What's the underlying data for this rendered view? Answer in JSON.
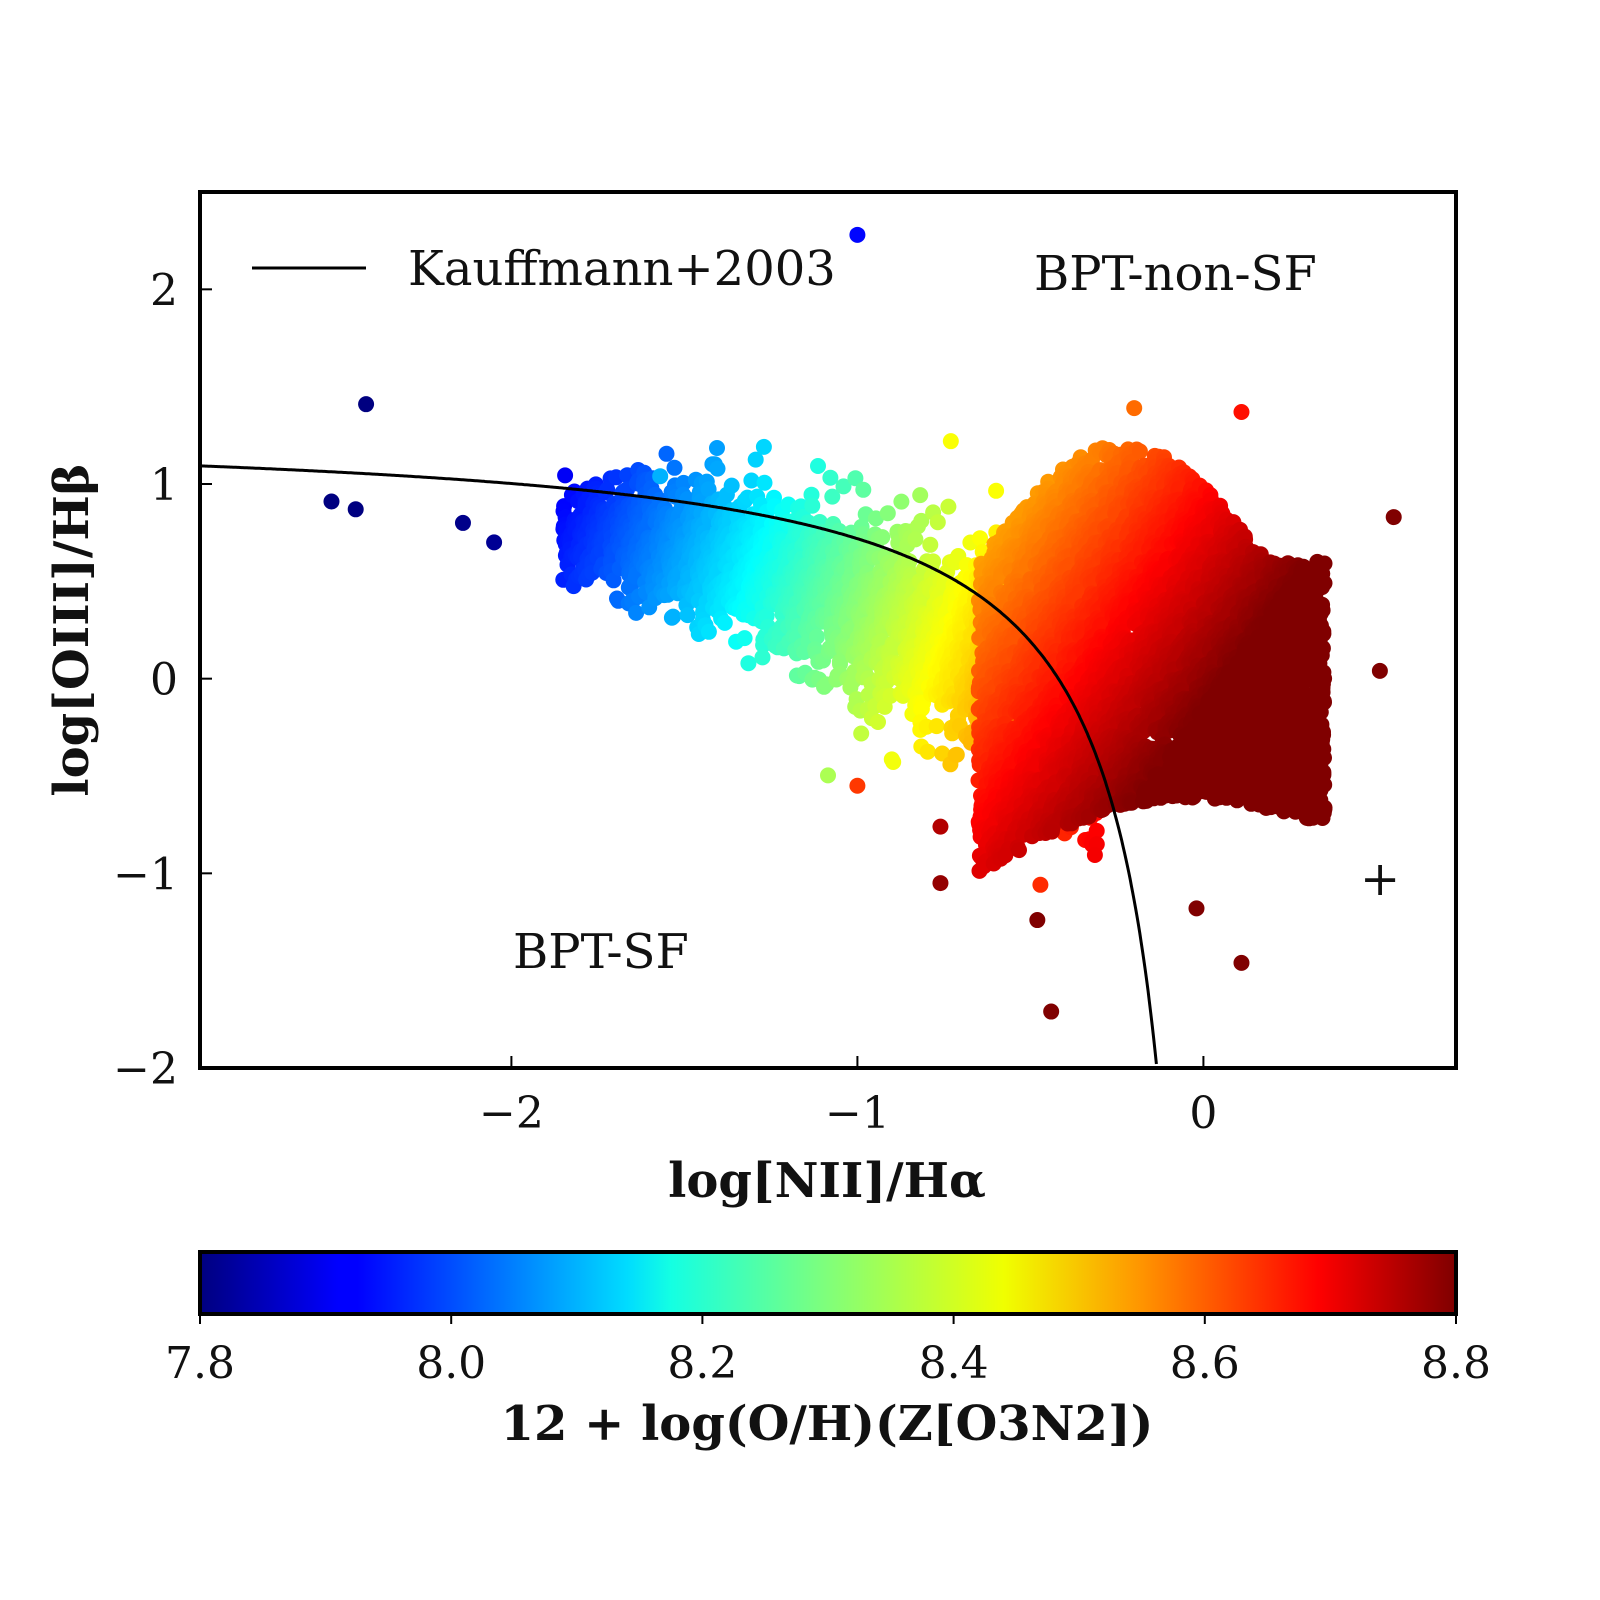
{
  "chart_data": {
    "type": "scatter",
    "title": "",
    "xlabel": "log[NII]/Hα",
    "ylabel": "log[OIII]/Hβ",
    "xlim": [
      -2.9,
      0.73
    ],
    "ylim": [
      -2.0,
      2.5
    ],
    "xticks": [
      -2,
      -1,
      0
    ],
    "xtick_labels": [
      "−2",
      "−1",
      "0"
    ],
    "yticks": [
      2,
      1,
      0,
      -1,
      -2
    ],
    "ytick_labels": [
      "2",
      "1",
      "0",
      "−1",
      "−2"
    ],
    "grid": false,
    "legend": {
      "placement": "upper-left",
      "entries": [
        {
          "label": "Kauffmann+2003",
          "style": "black-line"
        }
      ]
    },
    "annotations": [
      {
        "text": "BPT-non-SF",
        "x": -0.5,
        "y": 2.07
      },
      {
        "text": "BPT-SF",
        "x": -2.0,
        "y": -1.4
      },
      {
        "text": "+",
        "x": 0.51,
        "y": -1.02
      }
    ],
    "curve": {
      "name": "Kauffmann+2003",
      "equation": "y = 0.61/(x - 0.05) + 1.3",
      "x_start": -2.9,
      "y_end": -2.0,
      "color": "#000000"
    },
    "colorbar": {
      "label": "12 + log(O/H)(Z[O3N2])",
      "range": [
        7.8,
        8.8
      ],
      "ticks": [
        7.8,
        8.0,
        8.2,
        8.4,
        8.6,
        8.8
      ],
      "tick_labels": [
        "7.8",
        "8.0",
        "8.2",
        "8.4",
        "8.6",
        "8.8"
      ],
      "colormap": "jet"
    },
    "points": [
      {
        "x": -1.0,
        "y": 2.28,
        "z": 7.93
      },
      {
        "x": -2.42,
        "y": 1.41,
        "z": 7.8
      },
      {
        "x": -2.52,
        "y": 0.91,
        "z": 7.8
      },
      {
        "x": -2.45,
        "y": 0.87,
        "z": 7.8
      },
      {
        "x": -2.14,
        "y": 0.8,
        "z": 7.81
      },
      {
        "x": -2.05,
        "y": 0.7,
        "z": 7.82
      },
      {
        "x": -1.57,
        "y": 1.04,
        "z": 8.1
      },
      {
        "x": -0.73,
        "y": 1.22,
        "z": 8.42
      },
      {
        "x": -0.2,
        "y": 1.39,
        "z": 8.57
      },
      {
        "x": 0.11,
        "y": 1.37,
        "z": 8.66
      },
      {
        "x": 0.55,
        "y": 0.83,
        "z": 8.8
      },
      {
        "x": 0.51,
        "y": 0.04,
        "z": 8.8
      },
      {
        "x": 0.34,
        "y": -0.47,
        "z": 8.8
      },
      {
        "x": -0.02,
        "y": -1.18,
        "z": 8.8
      },
      {
        "x": 0.11,
        "y": -1.46,
        "z": 8.8
      },
      {
        "x": -0.44,
        "y": -1.71,
        "z": 8.8
      },
      {
        "x": -0.48,
        "y": -1.24,
        "z": 8.8
      },
      {
        "x": -0.76,
        "y": -0.76,
        "z": 8.75
      },
      {
        "x": -0.76,
        "y": -1.05,
        "z": 8.78
      },
      {
        "x": -1.0,
        "y": -0.55,
        "z": 8.62
      }
    ]
  }
}
